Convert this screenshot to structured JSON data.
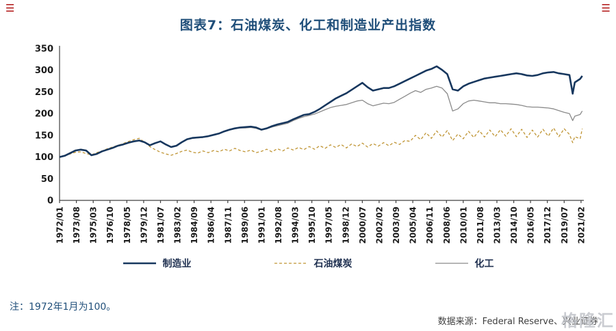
{
  "header": {
    "title": "图表7：石油煤炭、化工和制造业产出指数",
    "corner_icon_color": "#b01313"
  },
  "chart_data": {
    "type": "line",
    "title": "图表7：石油煤炭、化工和制造业产出指数",
    "xlabel": "",
    "ylabel": "",
    "ylim": [
      0,
      350
    ],
    "yticks": [
      0,
      50,
      100,
      150,
      200,
      250,
      300,
      350
    ],
    "grid": false,
    "legend_position": "bottom",
    "xtick_labels": [
      "1972/01",
      "1973/08",
      "1975/03",
      "1976/10",
      "1978/05",
      "1979/12",
      "1981/07",
      "1983/02",
      "1984/09",
      "1986/04",
      "1987/11",
      "1989/06",
      "1991/01",
      "1992/08",
      "1994/03",
      "1995/10",
      "1997/05",
      "1998/12",
      "2000/07",
      "2002/02",
      "2003/09",
      "2005/04",
      "2006/11",
      "2008/06",
      "2010/01",
      "2011/08",
      "2013/03",
      "2014/10",
      "2016/05",
      "2017/12",
      "2019/07",
      "2021/02"
    ],
    "x": [
      1972,
      1972.5,
      1973,
      1973.5,
      1974,
      1974.5,
      1975,
      1975.5,
      1976,
      1976.5,
      1977,
      1977.5,
      1978,
      1978.5,
      1979,
      1979.5,
      1980,
      1980.5,
      1981,
      1981.5,
      1982,
      1982.5,
      1983,
      1983.5,
      1984,
      1984.5,
      1985,
      1985.5,
      1986,
      1986.5,
      1987,
      1987.5,
      1988,
      1988.5,
      1989,
      1989.5,
      1990,
      1990.5,
      1991,
      1991.5,
      1992,
      1992.5,
      1993,
      1993.5,
      1994,
      1994.5,
      1995,
      1995.5,
      1996,
      1996.5,
      1997,
      1997.5,
      1998,
      1998.5,
      1999,
      1999.5,
      2000,
      2000.5,
      2001,
      2001.5,
      2002,
      2002.5,
      2003,
      2003.5,
      2004,
      2004.5,
      2005,
      2005.5,
      2006,
      2006.5,
      2007,
      2007.5,
      2008,
      2008.5,
      2009,
      2009.5,
      2010,
      2010.5,
      2011,
      2011.5,
      2012,
      2012.5,
      2013,
      2013.5,
      2014,
      2014.5,
      2015,
      2015.5,
      2016,
      2016.5,
      2017,
      2017.5,
      2018,
      2018.5,
      2019,
      2019.5,
      2020,
      2020.3,
      2020.5,
      2021,
      2021.2
    ],
    "series": [
      {
        "name": "制造业",
        "color": "#17375e",
        "width": 2.6,
        "dash": "",
        "values": [
          100,
          103,
          109,
          115,
          117,
          115,
          104,
          107,
          113,
          117,
          121,
          126,
          129,
          133,
          136,
          138,
          134,
          127,
          132,
          136,
          129,
          123,
          126,
          134,
          141,
          144,
          145,
          146,
          148,
          151,
          154,
          159,
          163,
          166,
          168,
          169,
          170,
          168,
          163,
          166,
          171,
          175,
          178,
          181,
          187,
          192,
          197,
          199,
          204,
          211,
          219,
          227,
          235,
          241,
          247,
          255,
          263,
          271,
          261,
          253,
          256,
          259,
          259,
          263,
          269,
          275,
          281,
          287,
          293,
          299,
          303,
          309,
          301,
          291,
          256,
          253,
          263,
          269,
          273,
          277,
          281,
          283,
          285,
          287,
          289,
          291,
          293,
          291,
          288,
          287,
          289,
          293,
          295,
          296,
          293,
          291,
          289,
          246,
          272,
          280,
          287
        ]
      },
      {
        "name": "石油煤炭",
        "color": "#bf9433",
        "width": 1.3,
        "dash": "4 3",
        "values": [
          100,
          103,
          107,
          111,
          112,
          108,
          105,
          110,
          114,
          119,
          123,
          127,
          131,
          136,
          140,
          143,
          134,
          124,
          117,
          111,
          107,
          104,
          108,
          113,
          116,
          111,
          109,
          114,
          110,
          115,
          112,
          118,
          114,
          120,
          115,
          112,
          116,
          110,
          113,
          118,
          112,
          119,
          114,
          121,
          116,
          122,
          117,
          124,
          118,
          126,
          120,
          128,
          122,
          129,
          121,
          130,
          124,
          132,
          123,
          131,
          125,
          133,
          126,
          134,
          129,
          138,
          136,
          150,
          140,
          156,
          143,
          160,
          146,
          161,
          138,
          153,
          142,
          159,
          145,
          161,
          146,
          162,
          147,
          163,
          148,
          165,
          147,
          164,
          145,
          162,
          146,
          164,
          148,
          167,
          147,
          165,
          152,
          133,
          147,
          142,
          165
        ]
      },
      {
        "name": "化工",
        "color": "#8a8a8a",
        "width": 1.3,
        "dash": "",
        "values": [
          100,
          104,
          110,
          116,
          118,
          116,
          105,
          108,
          114,
          118,
          122,
          127,
          130,
          134,
          137,
          139,
          135,
          128,
          133,
          136,
          128,
          123,
          126,
          133,
          140,
          143,
          144,
          145,
          147,
          151,
          154,
          158,
          162,
          165,
          167,
          167,
          168,
          166,
          162,
          165,
          169,
          172,
          175,
          178,
          184,
          189,
          193,
          196,
          199,
          204,
          209,
          214,
          217,
          219,
          221,
          225,
          229,
          231,
          223,
          218,
          221,
          224,
          223,
          226,
          233,
          240,
          247,
          253,
          249,
          256,
          259,
          263,
          259,
          246,
          206,
          211,
          223,
          229,
          231,
          229,
          227,
          225,
          225,
          223,
          223,
          222,
          221,
          219,
          216,
          215,
          215,
          214,
          213,
          211,
          207,
          203,
          200,
          184,
          194,
          198,
          206
        ]
      }
    ]
  },
  "footer": {
    "note": "注：1972年1月为100。",
    "source": "数据来源：Federal Reserve、兴业证券",
    "watermark": "格隆汇"
  }
}
